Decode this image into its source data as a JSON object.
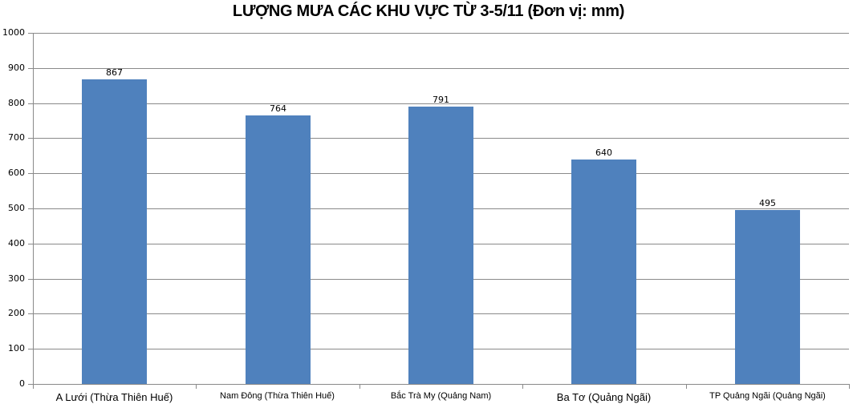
{
  "title": "LƯỢNG MƯA CÁC KHU VỰC TỪ 3-5/11 (Đơn vị: mm)",
  "y_ticks": [
    "0",
    "100",
    "200",
    "300",
    "400",
    "500",
    "600",
    "700",
    "800",
    "900",
    "1000"
  ],
  "bar_color": "#4F81BD",
  "chart_data": {
    "type": "bar",
    "title": "LƯỢNG MƯA CÁC KHU VỰC TỪ 3-5/11 (Đơn vị: mm)",
    "categories": [
      "A Lưới (Thừa Thiên Huế)",
      "Nam Đông (Thừa Thiên Huế)",
      "Bắc Trà My (Quảng Nam)",
      "Ba Tơ (Quảng Ngãi)",
      "TP Quảng Ngãi (Quảng Ngãi)"
    ],
    "values": [
      867,
      764,
      791,
      640,
      495
    ],
    "value_labels": [
      "867",
      "764",
      "791",
      "640",
      "495"
    ],
    "xlabel": "",
    "ylabel": "",
    "ylim": [
      0,
      1000
    ],
    "y_tick_step": 100,
    "grid": true,
    "legend": null,
    "data_labels": true
  }
}
